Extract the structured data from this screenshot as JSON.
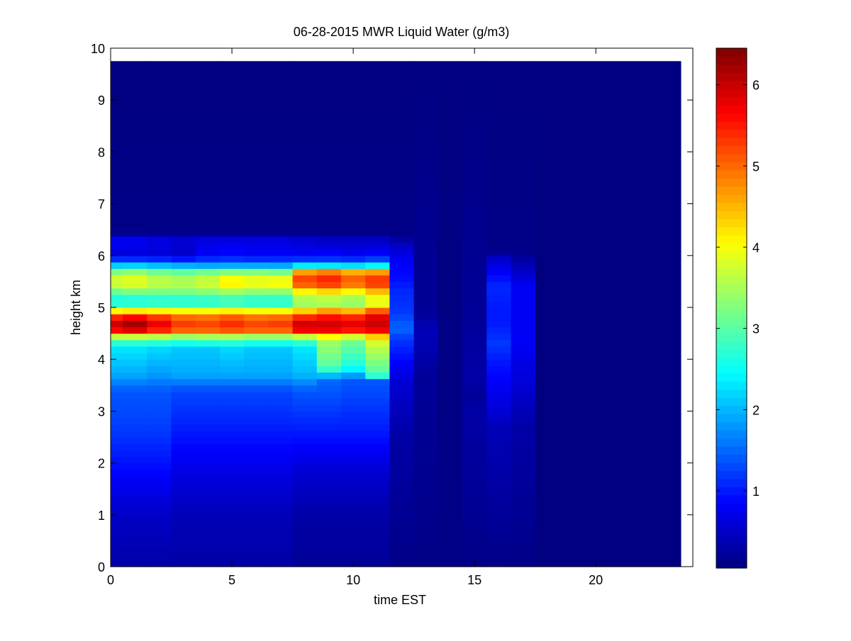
{
  "chart_data": {
    "type": "heatmap",
    "title": "06-28-2015 MWR Liquid Water (g/m3)",
    "xlabel": "time EST",
    "ylabel": "height km",
    "xlim": [
      0,
      24
    ],
    "ylim": [
      0,
      10
    ],
    "x_ticks": [
      0,
      5,
      10,
      15,
      20
    ],
    "y_ticks": [
      0,
      1,
      2,
      3,
      4,
      5,
      6,
      7,
      8,
      9,
      10
    ],
    "colorbar": {
      "colormap": "jet",
      "range": [
        0.05,
        6.45
      ],
      "ticks": [
        1,
        2,
        3,
        4,
        5,
        6
      ]
    },
    "data_extent": {
      "x": [
        0,
        23.5
      ],
      "y": [
        0,
        9.75
      ]
    },
    "grid": false,
    "columns": [
      {
        "t0": 0.0,
        "t1": 0.5,
        "profile": [
          [
            0,
            0.3
          ],
          [
            1.0,
            0.5
          ],
          [
            1.9,
            0.9
          ],
          [
            2.6,
            1.2
          ],
          [
            3.4,
            1.4
          ],
          [
            3.7,
            1.9
          ],
          [
            4.2,
            2.3
          ],
          [
            4.4,
            3.0
          ],
          [
            4.55,
            5.6
          ],
          [
            4.75,
            6.1
          ],
          [
            4.9,
            4.5
          ],
          [
            5.1,
            2.3
          ],
          [
            5.3,
            3.1
          ],
          [
            5.5,
            4.0
          ],
          [
            5.7,
            3.2
          ],
          [
            5.85,
            1.8
          ],
          [
            6.0,
            0.6
          ],
          [
            6.3,
            0.8
          ],
          [
            6.45,
            0.1
          ],
          [
            9.75,
            0.05
          ]
        ]
      },
      {
        "t0": 0.5,
        "t1": 1.5,
        "profile": [
          [
            0,
            0.3
          ],
          [
            1.0,
            0.5
          ],
          [
            1.9,
            0.9
          ],
          [
            2.6,
            1.2
          ],
          [
            3.4,
            1.4
          ],
          [
            3.7,
            1.9
          ],
          [
            4.2,
            2.3
          ],
          [
            4.4,
            3.0
          ],
          [
            4.55,
            5.8
          ],
          [
            4.75,
            6.4
          ],
          [
            4.9,
            4.6
          ],
          [
            5.1,
            2.3
          ],
          [
            5.3,
            3.2
          ],
          [
            5.5,
            4.1
          ],
          [
            5.7,
            3.3
          ],
          [
            5.85,
            1.8
          ],
          [
            6.0,
            0.6
          ],
          [
            6.3,
            0.8
          ],
          [
            6.45,
            0.1
          ],
          [
            9.75,
            0.05
          ]
        ]
      },
      {
        "t0": 1.5,
        "t1": 2.5,
        "profile": [
          [
            0,
            0.3
          ],
          [
            1.0,
            0.5
          ],
          [
            1.9,
            0.9
          ],
          [
            2.6,
            1.2
          ],
          [
            3.4,
            1.4
          ],
          [
            3.7,
            1.8
          ],
          [
            4.2,
            2.2
          ],
          [
            4.4,
            3.0
          ],
          [
            4.55,
            5.4
          ],
          [
            4.75,
            5.9
          ],
          [
            4.9,
            4.5
          ],
          [
            5.1,
            2.4
          ],
          [
            5.3,
            3.2
          ],
          [
            5.5,
            3.8
          ],
          [
            5.7,
            3.1
          ],
          [
            5.85,
            1.7
          ],
          [
            6.0,
            0.6
          ],
          [
            6.3,
            0.7
          ],
          [
            6.45,
            0.1
          ],
          [
            9.75,
            0.05
          ]
        ]
      },
      {
        "t0": 2.5,
        "t1": 3.5,
        "profile": [
          [
            0,
            0.3
          ],
          [
            1.0,
            0.4
          ],
          [
            1.9,
            0.7
          ],
          [
            2.6,
            1.0
          ],
          [
            3.4,
            1.3
          ],
          [
            3.7,
            1.9
          ],
          [
            4.2,
            2.1
          ],
          [
            4.4,
            2.9
          ],
          [
            4.55,
            5.0
          ],
          [
            4.75,
            5.4
          ],
          [
            4.9,
            4.4
          ],
          [
            5.1,
            2.4
          ],
          [
            5.3,
            3.2
          ],
          [
            5.5,
            3.7
          ],
          [
            5.7,
            3.0
          ],
          [
            5.85,
            1.6
          ],
          [
            6.0,
            0.5
          ],
          [
            6.3,
            0.6
          ],
          [
            6.45,
            0.1
          ],
          [
            9.75,
            0.05
          ]
        ]
      },
      {
        "t0": 3.5,
        "t1": 4.5,
        "profile": [
          [
            0,
            0.3
          ],
          [
            1.0,
            0.4
          ],
          [
            1.9,
            0.7
          ],
          [
            2.6,
            1.0
          ],
          [
            3.4,
            1.3
          ],
          [
            3.7,
            1.9
          ],
          [
            4.2,
            2.1
          ],
          [
            4.4,
            3.0
          ],
          [
            4.55,
            5.0
          ],
          [
            4.75,
            5.3
          ],
          [
            4.9,
            4.4
          ],
          [
            5.1,
            2.4
          ],
          [
            5.3,
            3.3
          ],
          [
            5.5,
            3.9
          ],
          [
            5.7,
            3.1
          ],
          [
            5.85,
            1.5
          ],
          [
            6.0,
            0.8
          ],
          [
            6.3,
            0.7
          ],
          [
            6.45,
            0.1
          ],
          [
            9.75,
            0.05
          ]
        ]
      },
      {
        "t0": 4.5,
        "t1": 5.5,
        "profile": [
          [
            0,
            0.3
          ],
          [
            1.0,
            0.4
          ],
          [
            1.9,
            0.7
          ],
          [
            2.6,
            1.0
          ],
          [
            3.4,
            1.3
          ],
          [
            3.7,
            1.9
          ],
          [
            4.2,
            2.2
          ],
          [
            4.4,
            3.0
          ],
          [
            4.55,
            5.1
          ],
          [
            4.75,
            5.5
          ],
          [
            4.9,
            4.5
          ],
          [
            5.1,
            2.5
          ],
          [
            5.3,
            3.4
          ],
          [
            5.5,
            4.4
          ],
          [
            5.7,
            3.2
          ],
          [
            5.85,
            1.5
          ],
          [
            6.0,
            0.9
          ],
          [
            6.3,
            0.7
          ],
          [
            6.45,
            0.1
          ],
          [
            9.75,
            0.05
          ]
        ]
      },
      {
        "t0": 5.5,
        "t1": 6.5,
        "profile": [
          [
            0,
            0.3
          ],
          [
            1.0,
            0.4
          ],
          [
            1.9,
            0.7
          ],
          [
            2.6,
            1.0
          ],
          [
            3.4,
            1.3
          ],
          [
            3.7,
            1.9
          ],
          [
            4.2,
            2.1
          ],
          [
            4.4,
            2.9
          ],
          [
            4.55,
            5.0
          ],
          [
            4.75,
            5.3
          ],
          [
            4.9,
            4.4
          ],
          [
            5.1,
            2.4
          ],
          [
            5.3,
            3.3
          ],
          [
            5.5,
            4.2
          ],
          [
            5.7,
            3.2
          ],
          [
            5.85,
            1.5
          ],
          [
            6.0,
            0.8
          ],
          [
            6.3,
            0.7
          ],
          [
            6.45,
            0.1
          ],
          [
            9.75,
            0.05
          ]
        ]
      },
      {
        "t0": 6.5,
        "t1": 7.5,
        "profile": [
          [
            0,
            0.3
          ],
          [
            1.0,
            0.4
          ],
          [
            1.9,
            0.7
          ],
          [
            2.6,
            1.0
          ],
          [
            3.4,
            1.3
          ],
          [
            3.7,
            1.9
          ],
          [
            4.2,
            2.1
          ],
          [
            4.4,
            2.9
          ],
          [
            4.55,
            5.0
          ],
          [
            4.75,
            5.4
          ],
          [
            4.9,
            4.4
          ],
          [
            5.1,
            2.4
          ],
          [
            5.3,
            3.3
          ],
          [
            5.5,
            4.3
          ],
          [
            5.7,
            3.1
          ],
          [
            5.85,
            1.5
          ],
          [
            6.0,
            0.8
          ],
          [
            6.3,
            0.7
          ],
          [
            6.45,
            0.1
          ],
          [
            9.75,
            0.05
          ]
        ]
      },
      {
        "t0": 7.5,
        "t1": 8.5,
        "profile": [
          [
            0,
            0.2
          ],
          [
            1.0,
            0.3
          ],
          [
            1.9,
            0.6
          ],
          [
            2.6,
            1.0
          ],
          [
            3.4,
            1.4
          ],
          [
            3.7,
            2.0
          ],
          [
            4.2,
            2.3
          ],
          [
            4.4,
            3.0
          ],
          [
            4.55,
            5.7
          ],
          [
            4.75,
            6.0
          ],
          [
            4.9,
            4.6
          ],
          [
            5.1,
            3.2
          ],
          [
            5.3,
            4.0
          ],
          [
            5.5,
            5.5
          ],
          [
            5.7,
            4.6
          ],
          [
            5.85,
            1.6
          ],
          [
            6.0,
            0.8
          ],
          [
            6.3,
            0.6
          ],
          [
            6.45,
            0.1
          ],
          [
            9.75,
            0.05
          ]
        ]
      },
      {
        "t0": 8.5,
        "t1": 9.5,
        "profile": [
          [
            0,
            0.2
          ],
          [
            1.0,
            0.3
          ],
          [
            1.9,
            0.6
          ],
          [
            2.6,
            1.0
          ],
          [
            3.6,
            1.5
          ],
          [
            3.85,
            3.0
          ],
          [
            4.2,
            3.3
          ],
          [
            4.4,
            3.5
          ],
          [
            4.55,
            5.7
          ],
          [
            4.75,
            6.0
          ],
          [
            4.9,
            5.0
          ],
          [
            5.1,
            3.2
          ],
          [
            5.3,
            4.2
          ],
          [
            5.5,
            5.7
          ],
          [
            5.7,
            4.8
          ],
          [
            5.85,
            1.5
          ],
          [
            6.0,
            0.9
          ],
          [
            6.3,
            0.5
          ],
          [
            6.45,
            0.1
          ],
          [
            9.75,
            0.05
          ]
        ]
      },
      {
        "t0": 9.5,
        "t1": 10.5,
        "profile": [
          [
            0,
            0.2
          ],
          [
            1.0,
            0.3
          ],
          [
            1.9,
            0.6
          ],
          [
            2.6,
            1.0
          ],
          [
            3.6,
            1.4
          ],
          [
            3.85,
            2.6
          ],
          [
            4.2,
            3.0
          ],
          [
            4.4,
            3.2
          ],
          [
            4.55,
            5.5
          ],
          [
            4.75,
            5.9
          ],
          [
            4.9,
            4.8
          ],
          [
            5.1,
            3.1
          ],
          [
            5.3,
            4.0
          ],
          [
            5.5,
            5.3
          ],
          [
            5.7,
            4.5
          ],
          [
            5.85,
            1.5
          ],
          [
            6.0,
            0.8
          ],
          [
            6.3,
            0.5
          ],
          [
            6.45,
            0.1
          ],
          [
            9.75,
            0.05
          ]
        ]
      },
      {
        "t0": 10.5,
        "t1": 11.5,
        "profile": [
          [
            0,
            0.2
          ],
          [
            1.0,
            0.3
          ],
          [
            1.9,
            0.6
          ],
          [
            2.6,
            1.0
          ],
          [
            3.6,
            1.4
          ],
          [
            3.7,
            2.9
          ],
          [
            4.2,
            3.6
          ],
          [
            4.4,
            3.9
          ],
          [
            4.55,
            5.7
          ],
          [
            4.75,
            6.1
          ],
          [
            4.9,
            5.4
          ],
          [
            5.1,
            3.6
          ],
          [
            5.3,
            4.4
          ],
          [
            5.5,
            5.6
          ],
          [
            5.7,
            4.6
          ],
          [
            5.85,
            1.7
          ],
          [
            6.0,
            0.9
          ],
          [
            6.3,
            0.5
          ],
          [
            6.45,
            0.1
          ],
          [
            9.75,
            0.05
          ]
        ]
      },
      {
        "t0": 11.5,
        "t1": 12.5,
        "profile": [
          [
            0,
            0.1
          ],
          [
            2.6,
            0.3
          ],
          [
            3.6,
            0.6
          ],
          [
            4.0,
            0.9
          ],
          [
            4.4,
            1.2
          ],
          [
            4.6,
            1.5
          ],
          [
            4.9,
            1.2
          ],
          [
            5.3,
            1.1
          ],
          [
            5.6,
            0.9
          ],
          [
            5.9,
            0.8
          ],
          [
            6.2,
            0.5
          ],
          [
            6.4,
            0.1
          ],
          [
            9.75,
            0.05
          ]
        ]
      },
      {
        "t0": 12.5,
        "t1": 13.5,
        "profile": [
          [
            0,
            0.1
          ],
          [
            3.6,
            0.2
          ],
          [
            4.0,
            0.3
          ],
          [
            4.4,
            0.4
          ],
          [
            4.6,
            0.4
          ],
          [
            4.9,
            0.2
          ],
          [
            9.75,
            0.05
          ]
        ]
      },
      {
        "t0": 13.5,
        "t1": 14.5,
        "profile": [
          [
            0,
            0.1
          ],
          [
            9.75,
            0.05
          ]
        ]
      },
      {
        "t0": 14.5,
        "t1": 15.5,
        "profile": [
          [
            0,
            0.1
          ],
          [
            3.1,
            0.3
          ],
          [
            3.3,
            0.2
          ],
          [
            3.6,
            0.3
          ],
          [
            4.4,
            0.25
          ],
          [
            4.8,
            0.2
          ],
          [
            9.75,
            0.05
          ]
        ]
      },
      {
        "t0": 15.5,
        "t1": 16.5,
        "profile": [
          [
            0,
            0.1
          ],
          [
            2.7,
            0.4
          ],
          [
            3.0,
            0.6
          ],
          [
            3.5,
            0.8
          ],
          [
            4.0,
            1.0
          ],
          [
            4.3,
            1.2
          ],
          [
            4.7,
            1.0
          ],
          [
            5.0,
            1.0
          ],
          [
            5.4,
            1.1
          ],
          [
            5.6,
            0.9
          ],
          [
            5.9,
            0.6
          ],
          [
            6.1,
            0.1
          ],
          [
            9.75,
            0.05
          ]
        ]
      },
      {
        "t0": 16.5,
        "t1": 17.5,
        "profile": [
          [
            0,
            0.1
          ],
          [
            2.7,
            0.3
          ],
          [
            3.0,
            0.4
          ],
          [
            3.5,
            0.6
          ],
          [
            4.0,
            0.7
          ],
          [
            4.3,
            0.8
          ],
          [
            4.7,
            0.8
          ],
          [
            5.0,
            0.8
          ],
          [
            5.4,
            0.8
          ],
          [
            5.6,
            0.6
          ],
          [
            5.9,
            0.3
          ],
          [
            6.1,
            0.1
          ],
          [
            9.75,
            0.05
          ]
        ]
      },
      {
        "t0": 17.5,
        "t1": 23.5,
        "profile": [
          [
            0,
            0.05
          ],
          [
            9.75,
            0.05
          ]
        ]
      }
    ]
  }
}
